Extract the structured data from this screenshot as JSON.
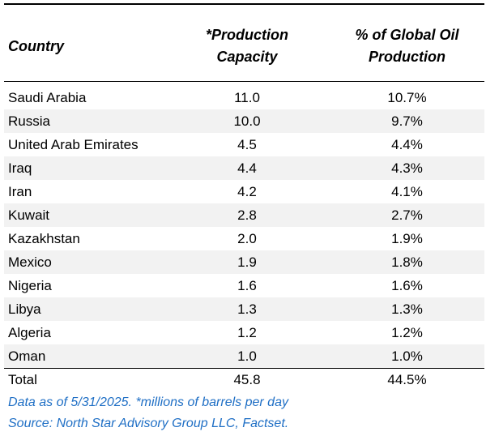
{
  "table": {
    "headers": {
      "country": "Country",
      "capacity_line1": "*Production",
      "capacity_line2": "Capacity",
      "pct_line1": "% of Global Oil",
      "pct_line2": "Production"
    },
    "rows": [
      {
        "country": "Saudi Arabia",
        "capacity": "11.0",
        "pct": "10.7%"
      },
      {
        "country": "Russia",
        "capacity": "10.0",
        "pct": "9.7%"
      },
      {
        "country": "United Arab Emirates",
        "capacity": "4.5",
        "pct": "4.4%"
      },
      {
        "country": "Iraq",
        "capacity": "4.4",
        "pct": "4.3%"
      },
      {
        "country": "Iran",
        "capacity": "4.2",
        "pct": "4.1%"
      },
      {
        "country": "Kuwait",
        "capacity": "2.8",
        "pct": "2.7%"
      },
      {
        "country": "Kazakhstan",
        "capacity": "2.0",
        "pct": "1.9%"
      },
      {
        "country": "Mexico",
        "capacity": "1.9",
        "pct": "1.8%"
      },
      {
        "country": "Nigeria",
        "capacity": "1.6",
        "pct": "1.6%"
      },
      {
        "country": "Libya",
        "capacity": "1.3",
        "pct": "1.3%"
      },
      {
        "country": "Algeria",
        "capacity": "1.2",
        "pct": "1.2%"
      },
      {
        "country": "Oman",
        "capacity": "1.0",
        "pct": "1.0%"
      }
    ],
    "total": {
      "country": "Total",
      "capacity": "45.8",
      "pct": "44.5%"
    }
  },
  "notes": {
    "line1": "Data as of 5/31/2025. *millions of barrels per day",
    "line2": "Source: North Star Advisory Group LLC, Factset."
  },
  "colors": {
    "note_text": "#1f6fc5",
    "row_shade": "#f2f2f2"
  }
}
